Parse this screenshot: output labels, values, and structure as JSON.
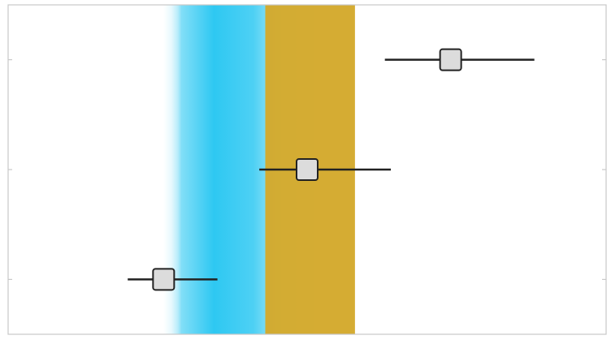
{
  "chart_data": {
    "type": "forest-interval",
    "title": "",
    "xlabel": "",
    "ylabel": "",
    "xlim": [
      0,
      100
    ],
    "rows": 3,
    "points": [
      {
        "row": 1,
        "estimate": 74,
        "low": 63,
        "high": 88
      },
      {
        "row": 2,
        "estimate": 50,
        "low": 42,
        "high": 64
      },
      {
        "row": 3,
        "estimate": 26,
        "low": 20,
        "high": 35
      }
    ],
    "bands": [
      {
        "name": "",
        "from": 26,
        "to": 56,
        "core_from": 29,
        "core_to": 41,
        "color": "#2ec8f2",
        "style": "gradient"
      },
      {
        "name": "",
        "from": 43,
        "to": 58,
        "color": "#d4a92c",
        "style": "solid"
      }
    ],
    "colors": {
      "marker_fill": "#dcdcdc",
      "marker_stroke": "#222222",
      "line": "#222222",
      "frame": "#c8c8c8",
      "background": "#ffffff"
    }
  }
}
